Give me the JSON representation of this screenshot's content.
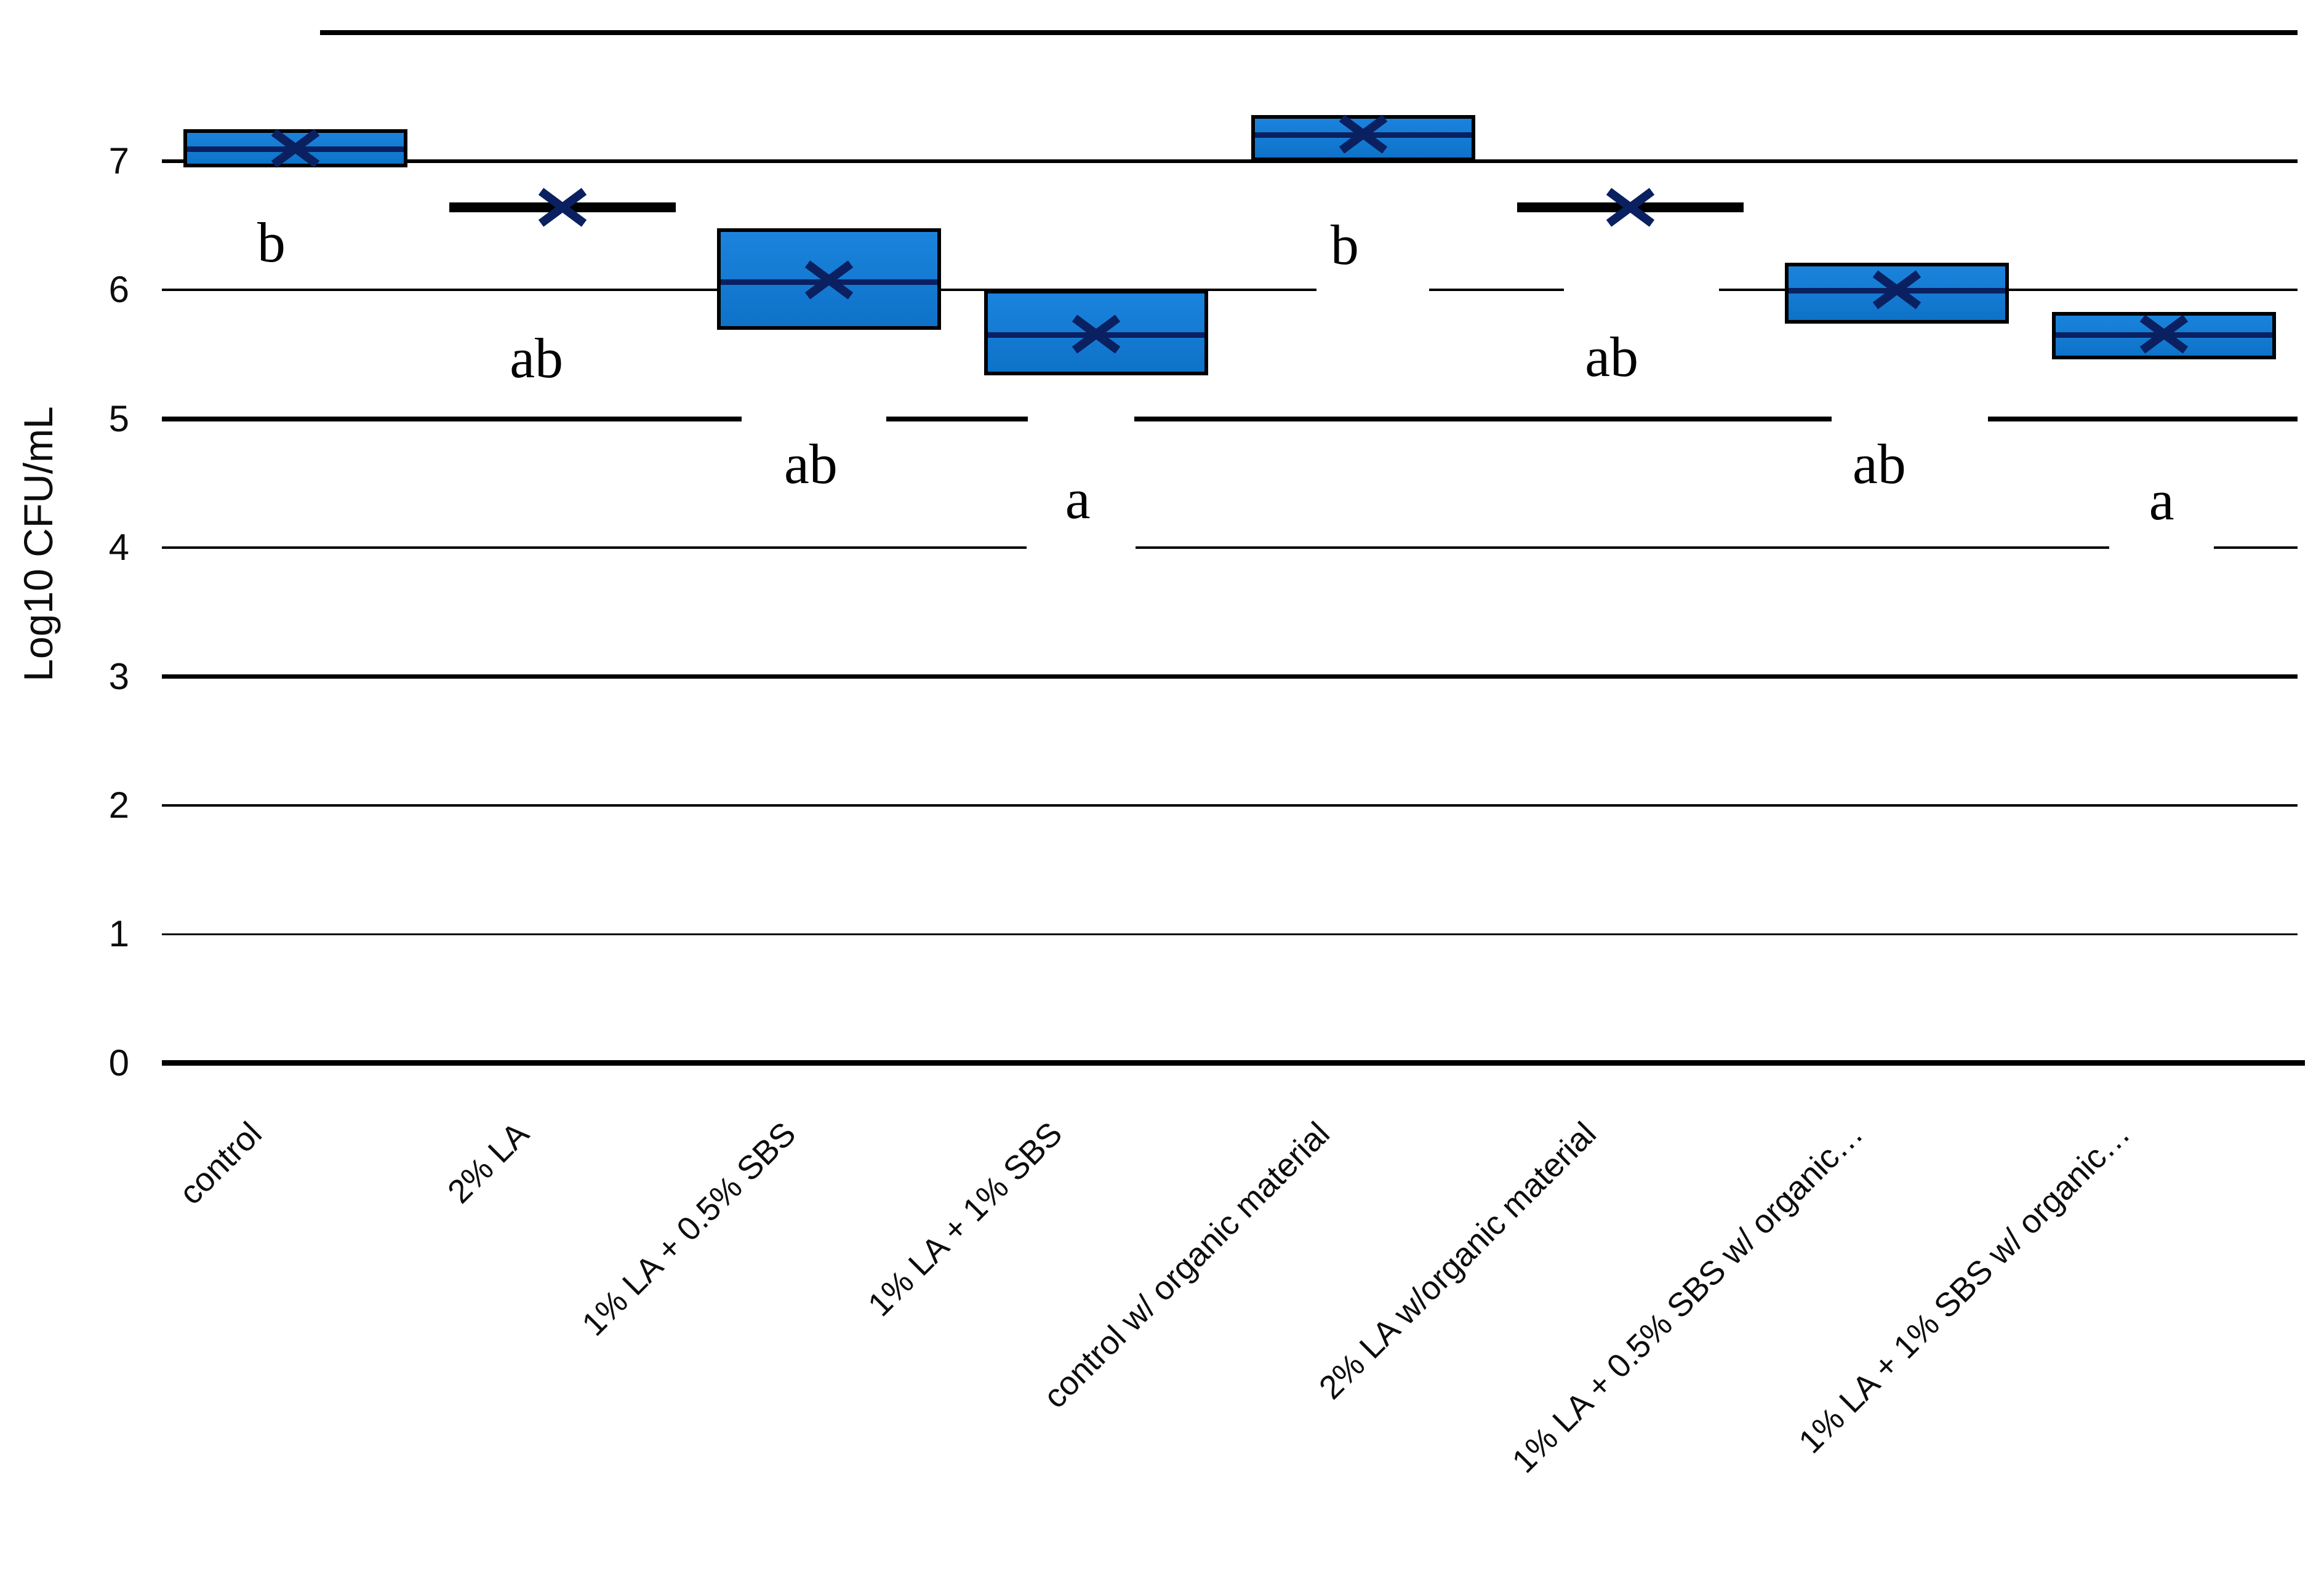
{
  "chart_data": {
    "type": "box",
    "title": "",
    "xlabel": "",
    "ylabel": "Log10 CFU/mL",
    "ylim": [
      0,
      8
    ],
    "yticks": [
      0,
      1,
      2,
      3,
      4,
      5,
      6,
      7
    ],
    "grid": "horizontal",
    "legend": "none",
    "categories": [
      "control",
      "2% LA",
      "1% LA + 0.5% SBS",
      "1% LA + 1% SBS",
      "control w/ organic material",
      "2% LA w/organic material",
      "1% LA + 0.5% SBS w/ organic…",
      "1% LA + 1% SBS w/ organic…"
    ],
    "boxes": [
      {
        "category": "control",
        "q1": 6.95,
        "median": 7.1,
        "q3": 7.25,
        "mean": 7.1,
        "flat": false,
        "sig": "b"
      },
      {
        "category": "2% LA",
        "q1": 6.64,
        "median": 6.64,
        "q3": 6.64,
        "mean": 6.64,
        "flat": true,
        "sig": "ab"
      },
      {
        "category": "1% LA + 0.5% SBS",
        "q1": 5.69,
        "median": 6.07,
        "q3": 6.48,
        "mean": 6.08,
        "flat": false,
        "sig": "ab"
      },
      {
        "category": "1% LA + 1% SBS",
        "q1": 5.34,
        "median": 5.66,
        "q3": 6.0,
        "mean": 5.66,
        "flat": false,
        "sig": "a"
      },
      {
        "category": "control w/ organic material",
        "q1": 7.0,
        "median": 7.21,
        "q3": 7.36,
        "mean": 7.21,
        "flat": false,
        "sig": "b"
      },
      {
        "category": "2% LA w/organic material",
        "q1": 6.64,
        "median": 6.64,
        "q3": 6.64,
        "mean": 6.64,
        "flat": true,
        "sig": "ab"
      },
      {
        "category": "1% LA + 0.5% SBS w/ organic…",
        "q1": 5.74,
        "median": 6.0,
        "q3": 6.21,
        "mean": 6.0,
        "flat": false,
        "sig": "ab"
      },
      {
        "category": "1% LA + 1% SBS w/ organic…",
        "q1": 5.46,
        "median": 5.66,
        "q3": 5.83,
        "mean": 5.66,
        "flat": false,
        "sig": "a"
      }
    ],
    "annotations": [
      {
        "label": "b",
        "category_index": 0,
        "v": 6.37,
        "dx": -39
      },
      {
        "label": "ab",
        "category_index": 1,
        "v": 5.47,
        "dx": -42
      },
      {
        "label": "ab",
        "category_index": 2,
        "v": 4.65,
        "dx": -30
      },
      {
        "label": "a",
        "category_index": 3,
        "v": 4.38,
        "dx": -30
      },
      {
        "label": "b",
        "category_index": 4,
        "v": 6.35,
        "dx": -30
      },
      {
        "label": "ab",
        "category_index": 5,
        "v": 5.48,
        "dx": -30
      },
      {
        "label": "ab",
        "category_index": 6,
        "v": 4.65,
        "dx": -29
      },
      {
        "label": "a",
        "category_index": 7,
        "v": 4.37,
        "dx": -4
      }
    ],
    "gridlines": [
      {
        "v": 8,
        "weight": 8,
        "x1": 520,
        "x2": 3733,
        "gaps": []
      },
      {
        "v": 7,
        "weight": 6,
        "x1": 263,
        "x2": 3733,
        "gaps": []
      },
      {
        "v": 6,
        "weight": 4,
        "x1": 263,
        "x2": 3733,
        "gaps": [
          [
            2139,
            2322
          ],
          [
            2541,
            2793
          ]
        ]
      },
      {
        "v": 5,
        "weight": 8,
        "x1": 263,
        "x2": 3733,
        "gaps": [
          [
            1205,
            1440
          ],
          [
            1670,
            1843
          ],
          [
            2976,
            3230
          ]
        ]
      },
      {
        "v": 4,
        "weight": 4,
        "x1": 263,
        "x2": 3733,
        "gaps": [
          [
            1668,
            1845
          ],
          [
            3427,
            3597
          ]
        ]
      },
      {
        "v": 3,
        "weight": 7,
        "x1": 263,
        "x2": 3733,
        "gaps": []
      },
      {
        "v": 2,
        "weight": 4,
        "x1": 263,
        "x2": 3733,
        "gaps": []
      },
      {
        "v": 1,
        "weight": 3,
        "x1": 263,
        "x2": 3733,
        "gaps": []
      },
      {
        "v": 0,
        "weight": 9,
        "x1": 263,
        "x2": 3745,
        "gaps": []
      }
    ],
    "colors": {
      "box_fill": "#147AD2",
      "box_border": "#000000",
      "median_line": "#0A2060",
      "mean_marker": "#0A2060",
      "gridline": "#000000",
      "text": "#0D0D0D"
    }
  }
}
